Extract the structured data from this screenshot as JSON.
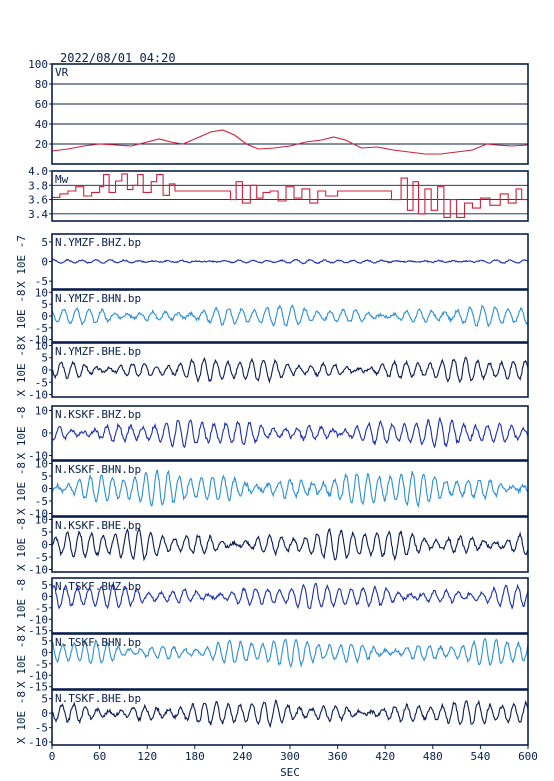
{
  "header": {
    "timestamp": "2022/08/01 04:20"
  },
  "colors": {
    "frame": "#0a1f4d",
    "vr": "#d0203c",
    "mw": "#d0203c",
    "dark": "#0a1a55",
    "blue": "#1a2fb0",
    "light": "#2a8fd6",
    "grid": "#0a1f4d"
  },
  "chart_data": [
    {
      "type": "line",
      "name": "vr",
      "label": "VR",
      "ylim": [
        0,
        100
      ],
      "yticks": [
        "100",
        "80",
        "60",
        "40",
        "20"
      ],
      "gridlines": [
        20,
        40,
        60,
        80
      ],
      "series_points": [
        [
          0,
          13
        ],
        [
          20,
          15
        ],
        [
          40,
          18
        ],
        [
          60,
          20
        ],
        [
          80,
          19
        ],
        [
          100,
          18
        ],
        [
          120,
          22
        ],
        [
          135,
          25
        ],
        [
          150,
          22
        ],
        [
          165,
          20
        ],
        [
          180,
          25
        ],
        [
          200,
          32
        ],
        [
          215,
          34
        ],
        [
          230,
          29
        ],
        [
          245,
          20
        ],
        [
          260,
          15
        ],
        [
          280,
          16
        ],
        [
          300,
          18
        ],
        [
          320,
          22
        ],
        [
          340,
          24
        ],
        [
          355,
          27
        ],
        [
          370,
          24
        ],
        [
          390,
          16
        ],
        [
          410,
          17
        ],
        [
          430,
          14
        ],
        [
          450,
          12
        ],
        [
          470,
          10
        ],
        [
          490,
          10
        ],
        [
          510,
          12
        ],
        [
          530,
          14
        ],
        [
          548,
          20
        ],
        [
          560,
          19
        ],
        [
          580,
          18
        ],
        [
          600,
          19
        ]
      ]
    },
    {
      "type": "line",
      "name": "mw",
      "label": "Mw",
      "ylim": [
        3.3,
        4.0
      ],
      "yticks": [
        "4.0",
        "3.8",
        "3.6",
        "3.4"
      ],
      "gridlines": [
        3.4,
        3.6,
        3.8
      ],
      "series_points": [
        [
          0,
          3.63
        ],
        [
          10,
          3.68
        ],
        [
          20,
          3.72
        ],
        [
          30,
          3.78
        ],
        [
          40,
          3.65
        ],
        [
          50,
          3.7
        ],
        [
          60,
          3.78
        ],
        [
          65,
          3.95
        ],
        [
          72,
          3.7
        ],
        [
          80,
          3.86
        ],
        [
          88,
          3.96
        ],
        [
          95,
          3.74
        ],
        [
          102,
          3.8
        ],
        [
          108,
          3.95
        ],
        [
          115,
          3.7
        ],
        [
          125,
          3.85
        ],
        [
          132,
          3.95
        ],
        [
          140,
          3.66
        ],
        [
          148,
          3.82
        ],
        [
          155,
          3.72
        ],
        [
          165,
          3.72
        ],
        [
          185,
          3.72
        ],
        [
          200,
          3.72
        ],
        [
          215,
          3.72
        ],
        [
          225,
          3.6
        ],
        [
          232,
          3.85
        ],
        [
          240,
          3.55
        ],
        [
          250,
          3.8
        ],
        [
          258,
          3.62
        ],
        [
          266,
          3.7
        ],
        [
          275,
          3.72
        ],
        [
          285,
          3.58
        ],
        [
          295,
          3.78
        ],
        [
          305,
          3.62
        ],
        [
          315,
          3.75
        ],
        [
          325,
          3.55
        ],
        [
          335,
          3.72
        ],
        [
          345,
          3.65
        ],
        [
          360,
          3.72
        ],
        [
          380,
          3.72
        ],
        [
          400,
          3.72
        ],
        [
          415,
          3.72
        ],
        [
          428,
          3.6
        ],
        [
          440,
          3.9
        ],
        [
          448,
          3.45
        ],
        [
          455,
          3.85
        ],
        [
          462,
          3.4
        ],
        [
          470,
          3.75
        ],
        [
          478,
          3.45
        ],
        [
          486,
          3.78
        ],
        [
          494,
          3.35
        ],
        [
          502,
          3.6
        ],
        [
          510,
          3.35
        ],
        [
          520,
          3.55
        ],
        [
          530,
          3.48
        ],
        [
          540,
          3.62
        ],
        [
          552,
          3.52
        ],
        [
          565,
          3.68
        ],
        [
          575,
          3.55
        ],
        [
          585,
          3.75
        ],
        [
          592,
          3.6
        ],
        [
          600,
          3.48
        ]
      ]
    }
  ],
  "traces": [
    {
      "label": "N.YMZF.BHZ.bp",
      "scale_label": "X 10E -7",
      "yticks": [
        "5",
        "0",
        "-5"
      ],
      "ylim": [
        -7,
        7
      ],
      "color_key": "blue",
      "amplitude": 0.35,
      "period_s": 18,
      "noise": 0.15,
      "seed": 1
    },
    {
      "label": "N.YMZF.BHN.bp",
      "scale_label": "X 10E -8",
      "yticks": [
        "10",
        "5",
        "0",
        "-5",
        "-10"
      ],
      "ylim": [
        -11,
        11
      ],
      "color_key": "light",
      "amplitude": 3.2,
      "period_s": 16,
      "noise": 0.6,
      "seed": 2
    },
    {
      "label": "N.YMZF.BHE.bp",
      "scale_label": "X 10E -8",
      "yticks": [
        "10",
        "5",
        "0",
        "-5",
        "-10"
      ],
      "ylim": [
        -11,
        11
      ],
      "color_key": "dark",
      "amplitude": 3.6,
      "period_s": 15,
      "noise": 0.6,
      "seed": 3
    },
    {
      "label": "N.KSKF.BHZ.bp",
      "scale_label": "X 10E -8",
      "yticks": [
        "10",
        "0",
        "-10"
      ],
      "ylim": [
        -12,
        12
      ],
      "color_key": "blue",
      "amplitude": 4.5,
      "period_s": 15,
      "noise": 0.8,
      "seed": 4
    },
    {
      "label": "N.KSKF.BHN.bp",
      "scale_label": "X 10E -8",
      "yticks": [
        "10",
        "5",
        "0",
        "-5",
        "-10"
      ],
      "ylim": [
        -11,
        11
      ],
      "color_key": "light",
      "amplitude": 5.2,
      "period_s": 14,
      "noise": 0.8,
      "seed": 5
    },
    {
      "label": "N.KSKF.BHE.bp",
      "scale_label": "X 10E -8",
      "yticks": [
        "10",
        "5",
        "0",
        "-5",
        "-10"
      ],
      "ylim": [
        -11,
        11
      ],
      "color_key": "dark",
      "amplitude": 4.6,
      "period_s": 15,
      "noise": 0.7,
      "seed": 6
    },
    {
      "label": "N.TSKF.BHZ.bp",
      "scale_label": "X 10E -8",
      "yticks": [
        "5",
        "0",
        "-5",
        "-10",
        "-15"
      ],
      "ylim": [
        -16,
        8
      ],
      "color_key": "blue",
      "amplitude": 4.0,
      "period_s": 15,
      "noise": 0.7,
      "seed": 7
    },
    {
      "label": "N.TSKF.BHN.bp",
      "scale_label": "X 10E -8",
      "yticks": [
        "5",
        "0",
        "-5",
        "-10",
        "-15"
      ],
      "ylim": [
        -16,
        8
      ],
      "color_key": "light",
      "amplitude": 4.5,
      "period_s": 14,
      "noise": 0.7,
      "seed": 8
    },
    {
      "label": "N.TSKF.BHE.bp",
      "scale_label": "X 10E -8",
      "yticks": [
        "5",
        "0",
        "-5",
        "-10"
      ],
      "ylim": [
        -11,
        8
      ],
      "color_key": "dark",
      "amplitude": 3.2,
      "period_s": 15,
      "noise": 0.6,
      "seed": 9
    }
  ],
  "x_axis": {
    "label": "SEC",
    "ticks": [
      0,
      60,
      120,
      180,
      240,
      300,
      360,
      420,
      480,
      540,
      600
    ],
    "xlim": [
      0,
      600
    ]
  }
}
